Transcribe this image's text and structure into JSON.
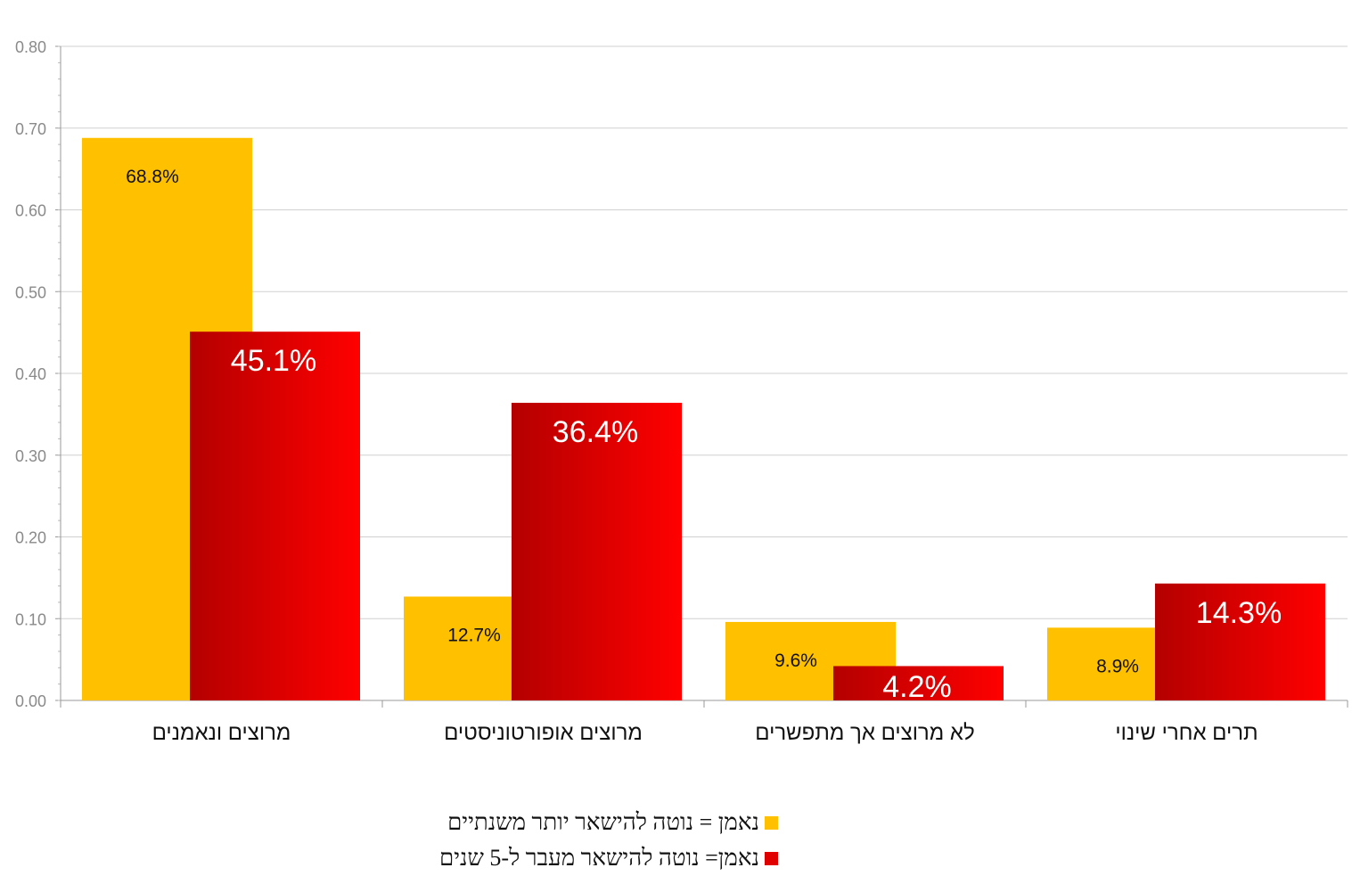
{
  "chart_data": {
    "type": "bar",
    "categories": [
      "מרוצים ונאמנים",
      "מרוצים אופורטוניסטים",
      "לא מרוצים אך מתפשרים",
      "תרים אחרי שינוי"
    ],
    "series": [
      {
        "name": "נאמן = נוטה להישאר יותר משנתיים",
        "values": [
          0.688,
          0.127,
          0.096,
          0.089
        ],
        "labels": [
          "68.8%",
          "12.7%",
          "9.6%",
          "8.9%"
        ],
        "color": "#ffc000"
      },
      {
        "name": "נאמן= נוטה להישאר מעבר ל-5 שנים",
        "values": [
          0.451,
          0.364,
          0.042,
          0.143
        ],
        "labels": [
          "45.1%",
          "36.4%",
          "4.2%",
          "14.3%"
        ],
        "color": "#e00000"
      }
    ],
    "y_ticks": [
      "0.00",
      "0.10",
      "0.20",
      "0.30",
      "0.40",
      "0.50",
      "0.60",
      "0.70",
      "0.80"
    ],
    "ylim": [
      0,
      0.8
    ],
    "grid": true,
    "legend_position": "bottom-center"
  }
}
